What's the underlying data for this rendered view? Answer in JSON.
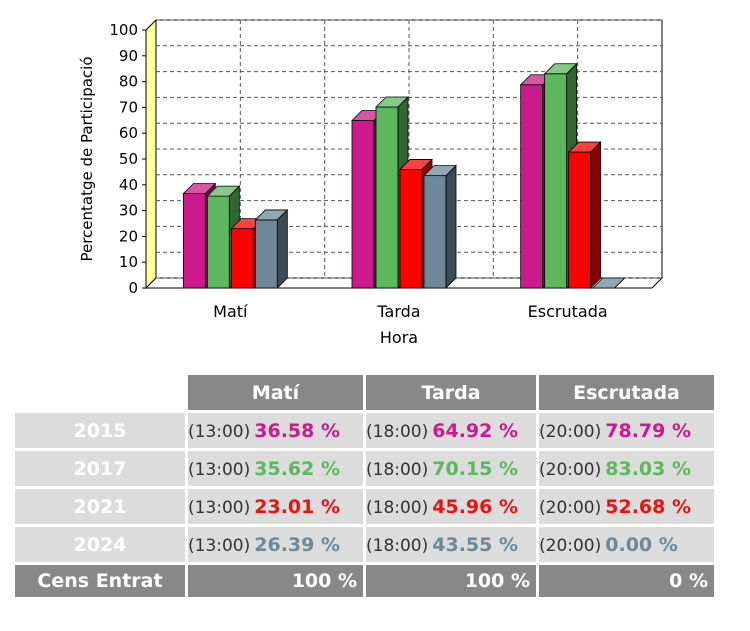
{
  "chart_data": {
    "type": "bar",
    "categories": [
      "Matí",
      "Tarda",
      "Escrutada"
    ],
    "series": [
      {
        "name": "2015",
        "color": "#cc1a8c",
        "values": [
          36.58,
          64.92,
          78.79
        ]
      },
      {
        "name": "2017",
        "color": "#5cb85c",
        "values": [
          35.62,
          70.15,
          83.03
        ]
      },
      {
        "name": "2021",
        "color": "#ff0000",
        "values": [
          23.01,
          45.96,
          52.68
        ]
      },
      {
        "name": "2024",
        "color": "#6e8899",
        "values": [
          26.39,
          43.55,
          0.0
        ]
      }
    ],
    "xlabel": "Hora",
    "ylabel": "Percentatge de Participació",
    "ylim": [
      0,
      100
    ],
    "yticks": [
      0,
      10,
      20,
      30,
      40,
      50,
      60,
      70,
      80,
      90,
      100
    ],
    "grid": true
  },
  "table": {
    "columns": [
      "Matí",
      "Tarda",
      "Escrutada"
    ],
    "rows": [
      {
        "year": "2015",
        "color": "#cc1a8c",
        "cells": [
          {
            "time": "(13:00)",
            "pct": "36.58 %"
          },
          {
            "time": "(18:00)",
            "pct": "64.92 %"
          },
          {
            "time": "(20:00)",
            "pct": "78.79 %"
          }
        ]
      },
      {
        "year": "2017",
        "color": "#5cb85c",
        "cells": [
          {
            "time": "(13:00)",
            "pct": "35.62 %"
          },
          {
            "time": "(18:00)",
            "pct": "70.15 %"
          },
          {
            "time": "(20:00)",
            "pct": "83.03 %"
          }
        ]
      },
      {
        "year": "2021",
        "color": "#ee1111",
        "cells": [
          {
            "time": "(13:00)",
            "pct": "23.01 %"
          },
          {
            "time": "(18:00)",
            "pct": "45.96 %"
          },
          {
            "time": "(20:00)",
            "pct": "52.68 %"
          }
        ]
      },
      {
        "year": "2024",
        "color": "#6e8899",
        "cells": [
          {
            "time": "(13:00)",
            "pct": "26.39 %"
          },
          {
            "time": "(18:00)",
            "pct": "43.55 %"
          },
          {
            "time": "(20:00)",
            "pct": "0.00 %"
          }
        ]
      }
    ],
    "total": {
      "label": "Cens Entrat",
      "values": [
        "100 %",
        "100 %",
        "0 %"
      ]
    }
  }
}
